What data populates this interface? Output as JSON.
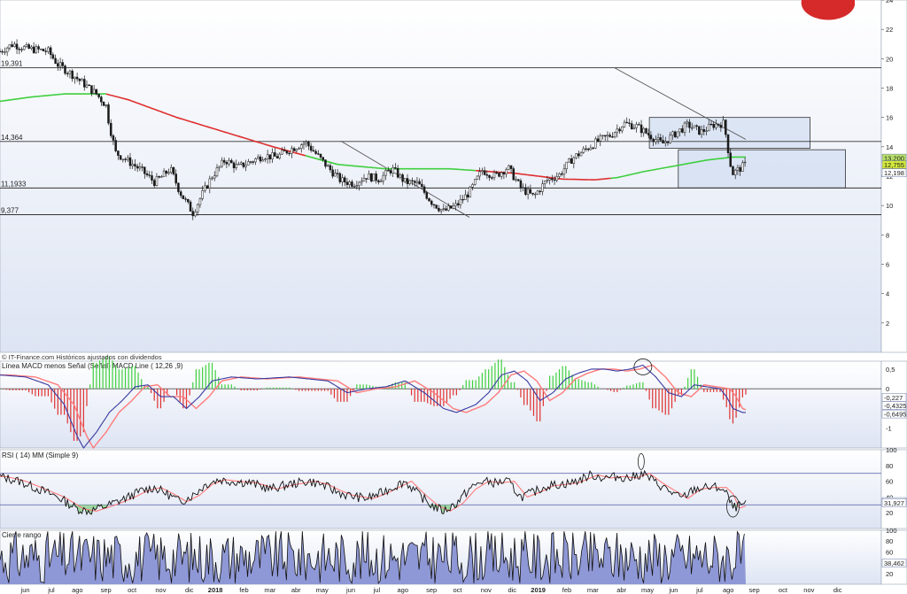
{
  "colors": {
    "background_top": "#ffffff",
    "background_bottom": "#dde4f3",
    "candle": "#1a1a1a",
    "sma_red": "#e03030",
    "sma_green": "#3fcf3f",
    "hline": "#333333",
    "trendline": "#555555",
    "box_fill": "#c9d7ef",
    "box_stroke": "#333333",
    "macd_line": "#3a3aa0",
    "macd_signal": "#ff7b7b",
    "hist_pos": "#3fcf3f",
    "hist_neg": "#e03030",
    "rsi_line": "#111111",
    "rsi_signal": "#ff7b7b",
    "range_fill": "#8f98d6",
    "range_line": "#111111",
    "tag_green": "#b8e06a",
    "tag_yellow": "#d4e93a"
  },
  "header": {
    "source": "© IT-Finance.com Históricos ajustados con dividendos"
  },
  "chart_data": [
    {
      "type": "line",
      "panel": "price",
      "title": "",
      "yticks": [
        "24",
        "22",
        "20",
        "18",
        "16",
        "14",
        "12",
        "10",
        "8",
        "6",
        "4",
        "2"
      ],
      "ylim": [
        0,
        24
      ],
      "hlines": [
        {
          "label": "19,391",
          "value": 19.391
        },
        {
          "label": "14,364",
          "value": 14.364
        },
        {
          "label": "11,1933",
          "value": 11.1933
        },
        {
          "label": "9,377",
          "value": 9.377
        }
      ],
      "tags": [
        {
          "label": "13,200",
          "value": 13.2,
          "style": "green"
        },
        {
          "label": "12,755",
          "value": 12.755,
          "style": "yellow"
        },
        {
          "label": "12,198",
          "value": 12.198,
          "style": "plain"
        }
      ],
      "close_anchors": [
        [
          0,
          20.5
        ],
        [
          4,
          21.0
        ],
        [
          8,
          20.7
        ],
        [
          12,
          20.6
        ],
        [
          15,
          20.5
        ],
        [
          18,
          19.6
        ],
        [
          22,
          19.0
        ],
        [
          26,
          18.3
        ],
        [
          30,
          17.6
        ],
        [
          33,
          16.8
        ],
        [
          34,
          15.5
        ],
        [
          36,
          13.6
        ],
        [
          40,
          13.0
        ],
        [
          44,
          12.4
        ],
        [
          48,
          11.6
        ],
        [
          50,
          11.9
        ],
        [
          53,
          12.5
        ],
        [
          56,
          10.9
        ],
        [
          60,
          9.5
        ],
        [
          63,
          10.8
        ],
        [
          66,
          12.0
        ],
        [
          70,
          13.1
        ],
        [
          74,
          12.6
        ],
        [
          78,
          13.0
        ],
        [
          82,
          13.4
        ],
        [
          86,
          13.3
        ],
        [
          90,
          13.8
        ],
        [
          95,
          14.3
        ],
        [
          98,
          13.6
        ],
        [
          102,
          12.6
        ],
        [
          106,
          11.7
        ],
        [
          110,
          11.5
        ],
        [
          114,
          12.0
        ],
        [
          118,
          11.8
        ],
        [
          122,
          12.5
        ],
        [
          126,
          11.6
        ],
        [
          130,
          11.5
        ],
        [
          134,
          10.3
        ],
        [
          138,
          9.6
        ],
        [
          142,
          10.0
        ],
        [
          146,
          10.9
        ],
        [
          150,
          12.4
        ],
        [
          154,
          12.0
        ],
        [
          158,
          12.6
        ],
        [
          162,
          11.2
        ],
        [
          166,
          10.6
        ],
        [
          170,
          11.7
        ],
        [
          174,
          12.1
        ],
        [
          178,
          13.2
        ],
        [
          182,
          13.8
        ],
        [
          186,
          14.4
        ],
        [
          190,
          14.8
        ],
        [
          194,
          15.6
        ],
        [
          198,
          15.4
        ],
        [
          202,
          14.8
        ],
        [
          206,
          14.2
        ],
        [
          210,
          14.9
        ],
        [
          214,
          15.5
        ],
        [
          218,
          15.0
        ],
        [
          222,
          15.5
        ],
        [
          225,
          15.6
        ],
        [
          226,
          14.6
        ],
        [
          227,
          13.0
        ],
        [
          228,
          12.2
        ],
        [
          230,
          12.5
        ],
        [
          232,
          12.8
        ]
      ],
      "sma_long": [
        [
          0,
          17.1
        ],
        [
          10,
          17.4
        ],
        [
          20,
          17.6
        ],
        [
          33,
          17.6
        ],
        [
          40,
          17.2
        ],
        [
          55,
          16.0
        ],
        [
          70,
          15.0
        ],
        [
          85,
          14.0
        ],
        [
          95,
          13.4
        ],
        [
          105,
          12.8
        ],
        [
          120,
          12.5
        ],
        [
          140,
          12.5
        ],
        [
          160,
          12.2
        ],
        [
          175,
          11.8
        ],
        [
          185,
          11.75
        ],
        [
          192,
          11.9
        ],
        [
          200,
          12.3
        ],
        [
          210,
          12.7
        ],
        [
          220,
          13.1
        ],
        [
          228,
          13.3
        ]
      ],
      "sma_color_breaks": [
        {
          "from": 0,
          "to": 33,
          "color": "green"
        },
        {
          "from": 33,
          "to": 95,
          "color": "red"
        },
        {
          "from": 95,
          "to": 148,
          "color": "green"
        },
        {
          "from": 148,
          "to": 190,
          "color": "red"
        },
        {
          "from": 190,
          "to": 232,
          "color": "green"
        }
      ],
      "trendlines": [
        {
          "from": [
            106,
            14.4
          ],
          "to": [
            146,
            9.2
          ]
        },
        {
          "from": [
            191,
            19.4
          ],
          "to": [
            232,
            14.5
          ]
        }
      ],
      "boxes": [
        {
          "x0": 202,
          "x1": 252,
          "y0": 13.9,
          "y1": 16.0
        },
        {
          "x0": 211,
          "x1": 263,
          "y0": 11.2,
          "y1": 13.8
        }
      ]
    },
    {
      "type": "line",
      "panel": "macd",
      "legend": "Línea MACD menos Señal (Señal) MACD Line ( 12,26 ,9)",
      "yticks": [
        "0,5",
        "0",
        "-0,5",
        "-1"
      ],
      "ylim": [
        -1.5,
        0.7
      ],
      "tags": [
        {
          "label": "-0,227",
          "value": -0.227,
          "style": "plain"
        },
        {
          "label": "-0,4325",
          "value": -0.4325,
          "style": "plain"
        },
        {
          "label": "-0,6495",
          "value": -0.6495,
          "style": "plain"
        }
      ],
      "macd_anchors": [
        [
          0,
          0.35
        ],
        [
          8,
          0.3
        ],
        [
          15,
          0.1
        ],
        [
          20,
          -0.4
        ],
        [
          24,
          -1.2
        ],
        [
          26,
          -1.5
        ],
        [
          30,
          -1.1
        ],
        [
          34,
          -0.6
        ],
        [
          38,
          -0.3
        ],
        [
          42,
          0.05
        ],
        [
          46,
          0.1
        ],
        [
          50,
          -0.2
        ],
        [
          54,
          -0.2
        ],
        [
          58,
          -0.5
        ],
        [
          62,
          -0.2
        ],
        [
          66,
          0.2
        ],
        [
          72,
          0.3
        ],
        [
          80,
          0.25
        ],
        [
          90,
          0.3
        ],
        [
          96,
          0.25
        ],
        [
          102,
          0.2
        ],
        [
          108,
          -0.1
        ],
        [
          114,
          0.0
        ],
        [
          120,
          0.05
        ],
        [
          126,
          0.2
        ],
        [
          132,
          -0.1
        ],
        [
          138,
          -0.5
        ],
        [
          142,
          -0.6
        ],
        [
          148,
          -0.4
        ],
        [
          152,
          -0.1
        ],
        [
          156,
          0.35
        ],
        [
          160,
          0.45
        ],
        [
          164,
          0.2
        ],
        [
          168,
          -0.3
        ],
        [
          172,
          -0.1
        ],
        [
          176,
          0.25
        ],
        [
          180,
          0.4
        ],
        [
          184,
          0.5
        ],
        [
          188,
          0.5
        ],
        [
          192,
          0.45
        ],
        [
          196,
          0.5
        ],
        [
          200,
          0.6
        ],
        [
          204,
          0.3
        ],
        [
          208,
          -0.1
        ],
        [
          212,
          -0.2
        ],
        [
          216,
          0.1
        ],
        [
          220,
          0.05
        ],
        [
          224,
          0.0
        ],
        [
          226,
          -0.2
        ],
        [
          228,
          -0.5
        ],
        [
          231,
          -0.6
        ]
      ]
    },
    {
      "type": "line",
      "panel": "rsi",
      "legend": "RSI ( 14)   MM (Simple 9)",
      "yticks": [
        "100",
        "80",
        "60",
        "40",
        "20"
      ],
      "ylim": [
        0,
        100
      ],
      "levels": [
        70,
        30
      ],
      "tags": [
        {
          "label": "33,641",
          "value": 33.641,
          "style": "plain"
        },
        {
          "label": "31,927",
          "value": 31.927,
          "style": "plain"
        }
      ],
      "rsi_anchors": [
        [
          0,
          66
        ],
        [
          6,
          60
        ],
        [
          12,
          50
        ],
        [
          18,
          40
        ],
        [
          24,
          25
        ],
        [
          28,
          22
        ],
        [
          34,
          30
        ],
        [
          40,
          40
        ],
        [
          44,
          48
        ],
        [
          48,
          52
        ],
        [
          52,
          44
        ],
        [
          56,
          34
        ],
        [
          60,
          42
        ],
        [
          64,
          56
        ],
        [
          68,
          62
        ],
        [
          72,
          60
        ],
        [
          78,
          58
        ],
        [
          84,
          50
        ],
        [
          90,
          56
        ],
        [
          96,
          60
        ],
        [
          100,
          56
        ],
        [
          104,
          48
        ],
        [
          108,
          42
        ],
        [
          114,
          38
        ],
        [
          118,
          44
        ],
        [
          122,
          52
        ],
        [
          126,
          60
        ],
        [
          130,
          44
        ],
        [
          134,
          30
        ],
        [
          138,
          22
        ],
        [
          142,
          32
        ],
        [
          146,
          50
        ],
        [
          150,
          60
        ],
        [
          154,
          58
        ],
        [
          158,
          60
        ],
        [
          162,
          40
        ],
        [
          166,
          46
        ],
        [
          170,
          54
        ],
        [
          174,
          56
        ],
        [
          178,
          58
        ],
        [
          184,
          68
        ],
        [
          188,
          64
        ],
        [
          192,
          66
        ],
        [
          196,
          64
        ],
        [
          200,
          70
        ],
        [
          204,
          58
        ],
        [
          208,
          48
        ],
        [
          212,
          38
        ],
        [
          216,
          50
        ],
        [
          220,
          52
        ],
        [
          224,
          52
        ],
        [
          226,
          44
        ],
        [
          228,
          26
        ],
        [
          231,
          30
        ]
      ]
    },
    {
      "type": "area",
      "panel": "range",
      "legend": "Cierre rango",
      "yticks": [
        "100",
        "80",
        "60",
        "40",
        "20"
      ],
      "ylim": [
        0,
        100
      ],
      "tags": [
        {
          "label": "38,462",
          "value": 38.462,
          "style": "plain"
        }
      ]
    }
  ],
  "xaxis": {
    "labels": [
      {
        "text": "jun",
        "x": 7
      },
      {
        "text": "jul",
        "x": 17
      },
      {
        "text": "ago",
        "x": 27
      },
      {
        "text": "sep",
        "x": 38
      },
      {
        "text": "oct",
        "x": 48
      },
      {
        "text": "nov",
        "x": 59
      },
      {
        "text": "dic",
        "x": 70
      },
      {
        "text": "2018",
        "x": 80,
        "bold": true
      },
      {
        "text": "feb",
        "x": 91
      },
      {
        "text": "mar",
        "x": 101
      },
      {
        "text": "abr",
        "x": 111
      },
      {
        "text": "may",
        "x": 121
      },
      {
        "text": "jun",
        "x": 132
      },
      {
        "text": "jul",
        "x": 142
      },
      {
        "text": "ago",
        "x": 152
      },
      {
        "text": "sep",
        "x": 163
      },
      {
        "text": "oct",
        "x": 173
      },
      {
        "text": "nov",
        "x": 184
      },
      {
        "text": "dic",
        "x": 194
      },
      {
        "text": "2019",
        "x": 204,
        "bold": true
      },
      {
        "text": "feb",
        "x": 215
      },
      {
        "text": "mar",
        "x": 225
      },
      {
        "text": "abr",
        "x": 236
      },
      {
        "text": "may",
        "x": 246
      },
      {
        "text": "jun",
        "x": 256
      },
      {
        "text": "jul",
        "x": 266
      },
      {
        "text": "ago",
        "x": 277
      },
      {
        "text": "sep",
        "x": 287
      },
      {
        "text": "oct",
        "x": 298
      },
      {
        "text": "nov",
        "x": 308
      },
      {
        "text": "dic",
        "x": 319
      }
    ]
  }
}
